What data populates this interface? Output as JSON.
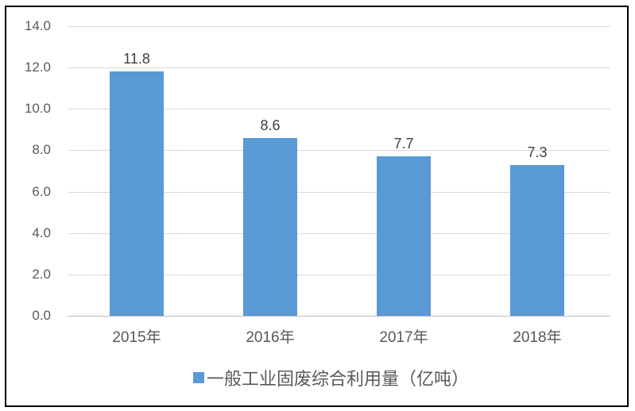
{
  "chart_data": {
    "type": "bar",
    "title": "",
    "categories": [
      "2015年",
      "2016年",
      "2017年",
      "2018年"
    ],
    "values": [
      11.8,
      8.6,
      7.7,
      7.3
    ],
    "bar_labels": [
      "11.8",
      "8.6",
      "7.7",
      "7.3"
    ],
    "legend": "一般工业固废综合利用量（亿吨）",
    "xlabel": "",
    "ylabel": "",
    "ylim": [
      0,
      14
    ],
    "yticks": [
      {
        "value": 0,
        "label": "0.0"
      },
      {
        "value": 2,
        "label": "2.0"
      },
      {
        "value": 4,
        "label": "4.0"
      },
      {
        "value": 6,
        "label": "6.0"
      },
      {
        "value": 8,
        "label": "8.0"
      },
      {
        "value": 10,
        "label": "10.0"
      },
      {
        "value": 12,
        "label": "12.0"
      },
      {
        "value": 14,
        "label": "14.0"
      }
    ],
    "grid": true,
    "legend_position": "bottom",
    "colors": {
      "bar": "#5899D6",
      "gridline": "#D9D9D9",
      "axis_line": "#BFBFBF",
      "tick_text": "#595959",
      "data_label": "#3F3F3F",
      "legend_text": "#595959",
      "frame_border": "#000000"
    }
  }
}
